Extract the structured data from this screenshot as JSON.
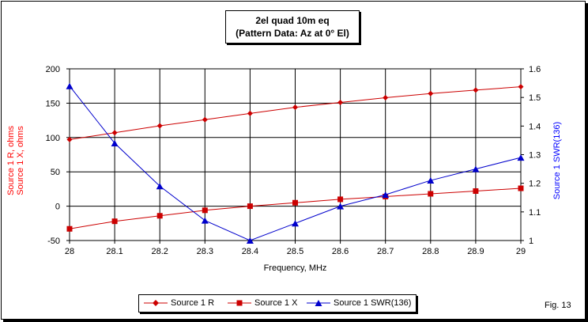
{
  "chart_data": {
    "type": "line",
    "title": "2el quad 10m eq",
    "subtitle": "(Pattern Data: Az at 0° El)",
    "xlabel": "Frequency, MHz",
    "ylabel_left": [
      "Source 1 R, ohms",
      "Source 1 X, ohms"
    ],
    "ylabel_right": "Source 1 SWR(136)",
    "x": [
      28,
      28.1,
      28.2,
      28.3,
      28.4,
      28.5,
      28.6,
      28.7,
      28.8,
      28.9,
      29
    ],
    "x_ticks": [
      "28",
      "28.1",
      "28.2",
      "28.3",
      "28.4",
      "28.5",
      "28.6",
      "28.7",
      "28.8",
      "28.9",
      "29"
    ],
    "xlim": [
      28,
      29
    ],
    "ylim_left": [
      -50,
      200
    ],
    "y_ticks_left": [
      "-50",
      "0",
      "50",
      "100",
      "150",
      "200"
    ],
    "ylim_right": [
      1,
      1.6
    ],
    "y_ticks_right": [
      "1",
      "1.1",
      "1.2",
      "1.3",
      "1.4",
      "1.5",
      "1.6"
    ],
    "grid": true,
    "legend_position": "bottom",
    "series": [
      {
        "name": "Source 1 R",
        "axis": "left",
        "color": "#cc0000",
        "marker": "diamond",
        "values": [
          97,
          107,
          117,
          126,
          135,
          144,
          151,
          158,
          164,
          169,
          174
        ]
      },
      {
        "name": "Source 1 X",
        "axis": "left",
        "color": "#cc0000",
        "marker": "square",
        "values": [
          -33,
          -22,
          -14,
          -6,
          0,
          5,
          10,
          14,
          18,
          22,
          26
        ]
      },
      {
        "name": "Source 1 SWR(136)",
        "axis": "right",
        "color": "#0000cc",
        "marker": "triangle",
        "values": [
          1.54,
          1.34,
          1.19,
          1.07,
          1.0,
          1.06,
          1.12,
          1.16,
          1.21,
          1.25,
          1.29
        ]
      }
    ]
  },
  "figure_label": "Fig. 13"
}
